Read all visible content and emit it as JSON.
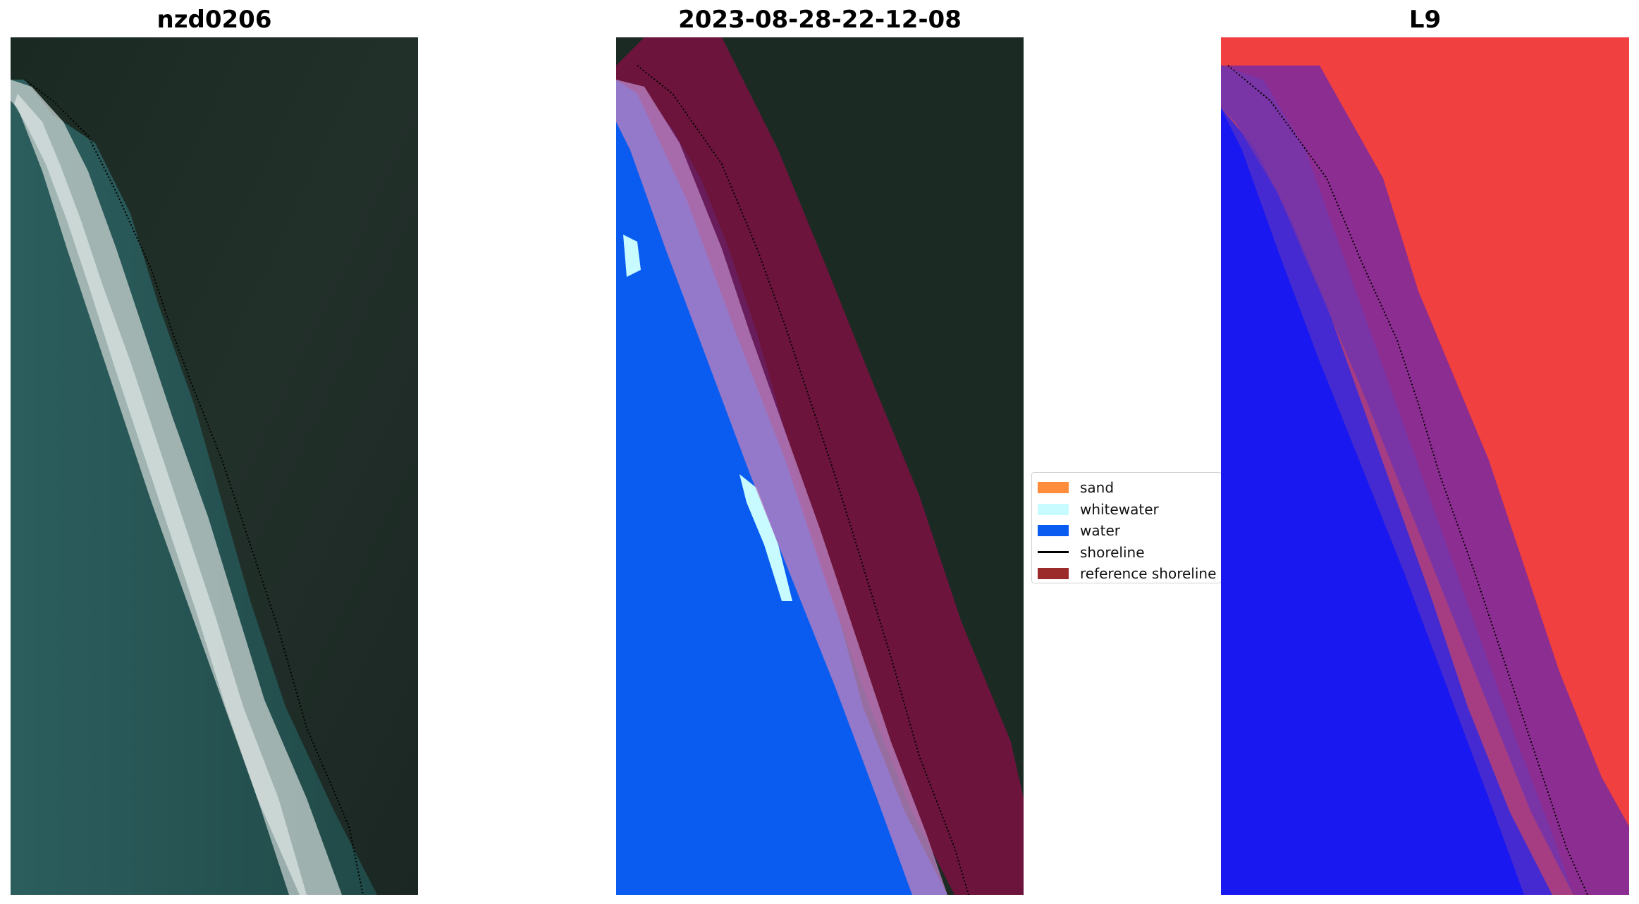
{
  "panels": {
    "rgb_title": "nzd0206",
    "classified_title": "2023-08-28-22-12-08",
    "index_title": "L9"
  },
  "legend": {
    "items": [
      {
        "label": "sand",
        "color": "#ff8c3a",
        "kind": "patch"
      },
      {
        "label": "whitewater",
        "color": "#c8fbff",
        "kind": "patch"
      },
      {
        "label": "water",
        "color": "#0a5cf0",
        "kind": "patch"
      },
      {
        "label": "shoreline",
        "color": "#000000",
        "kind": "line"
      },
      {
        "label": "reference shoreline",
        "color": "#9b2a2a",
        "kind": "patch"
      }
    ]
  },
  "colors": {
    "land_dark": "#1c2a24",
    "sea_teal": "#2a5a5a",
    "water_blue": "#0a5cf0",
    "whitewater": "#c8fbff",
    "reference_band": "#7a1040",
    "index_red": "#f03a3a",
    "index_blue": "#1a10f0"
  }
}
